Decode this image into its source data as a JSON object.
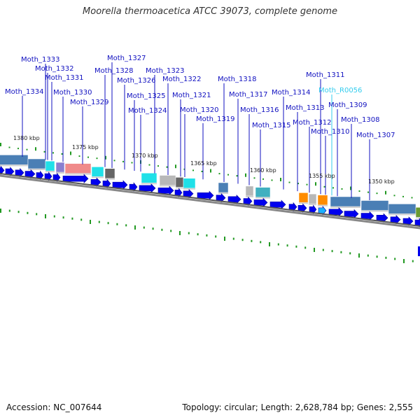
{
  "title": "Moorella thermoacetica ATCC 39073, complete genome",
  "footer": {
    "accession": "Accession: NC_007644",
    "summary": "Topology: circular; Length: 2,628,784 bp; Genes: 2,555"
  },
  "colors": {
    "gene_arrow": "#0000ee",
    "gene_label": "#1010c0",
    "rna_label": "#33ccee",
    "tick": "#229922",
    "backbone": "#888888"
  },
  "kbp_labels": [
    "1380 kbp",
    "1375 kbp",
    "1370 kbp",
    "1365 kbp",
    "1360 kbp",
    "1355 kbp",
    "1350 kbp"
  ],
  "gene_labels": [
    {
      "text": "Moth_1334",
      "type": "gene"
    },
    {
      "text": "Moth_1333",
      "type": "gene"
    },
    {
      "text": "Moth_1332",
      "type": "gene"
    },
    {
      "text": "Moth_1331",
      "type": "gene"
    },
    {
      "text": "Moth_1330",
      "type": "gene"
    },
    {
      "text": "Moth_1329",
      "type": "gene"
    },
    {
      "text": "Moth_1328",
      "type": "gene"
    },
    {
      "text": "Moth_1327",
      "type": "gene"
    },
    {
      "text": "Moth_1326",
      "type": "gene"
    },
    {
      "text": "Moth_1325",
      "type": "gene"
    },
    {
      "text": "Moth_1324",
      "type": "gene"
    },
    {
      "text": "Moth_1323",
      "type": "gene"
    },
    {
      "text": "Moth_1322",
      "type": "gene"
    },
    {
      "text": "Moth_1321",
      "type": "gene"
    },
    {
      "text": "Moth_1320",
      "type": "gene"
    },
    {
      "text": "Moth_1319",
      "type": "gene"
    },
    {
      "text": "Moth_1318",
      "type": "gene"
    },
    {
      "text": "Moth_1317",
      "type": "gene"
    },
    {
      "text": "Moth_1316",
      "type": "gene"
    },
    {
      "text": "Moth_1315",
      "type": "gene"
    },
    {
      "text": "Moth_1314",
      "type": "gene"
    },
    {
      "text": "Moth_1313",
      "type": "gene"
    },
    {
      "text": "Moth_1312",
      "type": "gene"
    },
    {
      "text": "Moth_1311",
      "type": "gene"
    },
    {
      "text": "Moth_R0056",
      "type": "rna"
    },
    {
      "text": "Moth_1310",
      "type": "gene"
    },
    {
      "text": "Moth_1309",
      "type": "gene"
    },
    {
      "text": "Moth_1308",
      "type": "gene"
    },
    {
      "text": "Moth_1307",
      "type": "gene"
    }
  ]
}
